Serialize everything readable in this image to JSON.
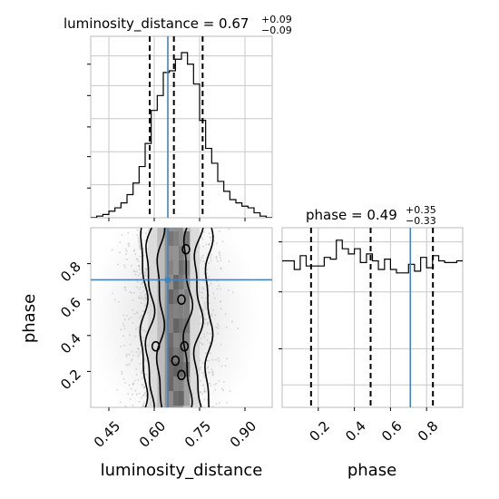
{
  "chart_data": [
    {
      "panel": "luminosity_distance-marginal",
      "type": "histogram",
      "title": {
        "text": "luminosity_distance = 0.67",
        "plus": "+0.09",
        "minus": "−0.09"
      },
      "x_range": [
        0.39,
        0.99
      ],
      "bin_edges": [
        0.39,
        0.41,
        0.43,
        0.45,
        0.47,
        0.49,
        0.51,
        0.53,
        0.55,
        0.57,
        0.59,
        0.61,
        0.63,
        0.65,
        0.67,
        0.69,
        0.71,
        0.73,
        0.75,
        0.77,
        0.79,
        0.81,
        0.83,
        0.85,
        0.87,
        0.89,
        0.91,
        0.93,
        0.95,
        0.97,
        0.99
      ],
      "counts": [
        0,
        0.01,
        0.02,
        0.04,
        0.06,
        0.09,
        0.14,
        0.21,
        0.31,
        0.45,
        0.65,
        0.74,
        0.88,
        0.89,
        0.96,
        1.0,
        0.93,
        0.81,
        0.59,
        0.42,
        0.33,
        0.22,
        0.16,
        0.11,
        0.09,
        0.07,
        0.06,
        0.03,
        0.01,
        0.0
      ],
      "quantile_lines": [
        0.585,
        0.665,
        0.76
      ],
      "truth": 0.645,
      "colors": {
        "step": "#000000",
        "quantile": "#000000",
        "truth": "#4682b4"
      }
    },
    {
      "panel": "phase-vs-luminosity_distance",
      "type": "density-contour",
      "x_range": [
        0.39,
        0.99
      ],
      "y_range": [
        0.0,
        1.0
      ],
      "x_ticks": [
        "0.45",
        "0.60",
        "0.75",
        "0.90"
      ],
      "y_ticks": [
        "0.2",
        "0.4",
        "0.6",
        "0.8"
      ],
      "xlabel": "luminosity_distance",
      "ylabel": "phase",
      "truth": {
        "x": 0.645,
        "y": 0.71
      },
      "colors": {
        "contour": "#000000",
        "truth": "#4682b4",
        "scatter": "#b4b4b4"
      }
    },
    {
      "panel": "phase-marginal",
      "type": "histogram",
      "title": {
        "text": "phase = 0.49",
        "plus": "+0.35",
        "minus": "−0.33"
      },
      "x_range": [
        0.0,
        1.0
      ],
      "bin_edges": [
        0.0,
        0.033,
        0.067,
        0.1,
        0.133,
        0.167,
        0.2,
        0.233,
        0.267,
        0.3,
        0.333,
        0.367,
        0.4,
        0.433,
        0.467,
        0.5,
        0.533,
        0.567,
        0.6,
        0.633,
        0.667,
        0.7,
        0.733,
        0.767,
        0.8,
        0.833,
        0.867,
        0.9,
        0.933,
        0.967,
        1.0
      ],
      "counts": [
        0.85,
        0.85,
        0.8,
        0.88,
        0.82,
        0.82,
        0.82,
        0.87,
        0.86,
        0.97,
        0.92,
        0.89,
        0.92,
        0.84,
        0.89,
        0.85,
        0.8,
        0.86,
        0.8,
        0.78,
        0.78,
        0.83,
        0.79,
        0.87,
        0.81,
        0.88,
        0.85,
        0.84,
        0.84,
        0.85
      ],
      "quantile_lines": [
        0.16,
        0.49,
        0.835
      ],
      "truth": 0.71,
      "x_ticks": [
        "0.2",
        "0.4",
        "0.6",
        "0.8"
      ],
      "xlabel": "phase",
      "colors": {
        "step": "#000000",
        "quantile": "#000000",
        "truth": "#4682b4"
      }
    }
  ]
}
